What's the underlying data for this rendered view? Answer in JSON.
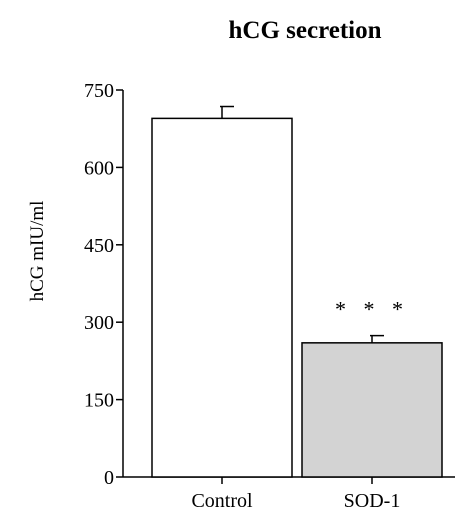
{
  "chart_data": {
    "type": "bar",
    "title": "hCG secretion",
    "xlabel": "",
    "ylabel": "hCG mIU/ml",
    "categories": [
      "Control",
      "SOD-1"
    ],
    "values": [
      695,
      260
    ],
    "errors": [
      23,
      14
    ],
    "bar_colors": [
      "#ffffff",
      "#d3d3d3"
    ],
    "significance": [
      "",
      "* * *"
    ],
    "yticks": [
      "0",
      "150",
      "300",
      "450",
      "600",
      "750"
    ],
    "ylim": [
      0,
      750
    ],
    "grid": false,
    "legend": "none"
  }
}
